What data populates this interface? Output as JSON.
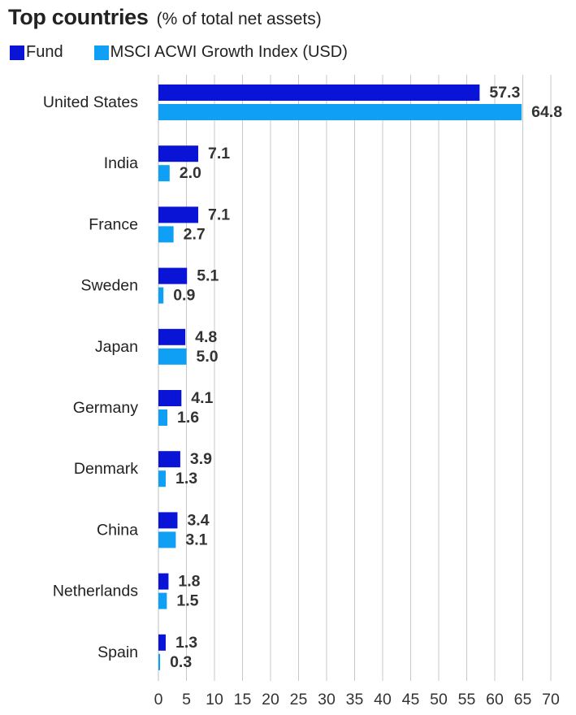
{
  "chart_data": {
    "type": "bar",
    "orientation": "horizontal",
    "title": "Top countries",
    "subtitle": "(% of total net assets)",
    "categories": [
      "United States",
      "India",
      "France",
      "Sweden",
      "Japan",
      "Germany",
      "Denmark",
      "China",
      "Netherlands",
      "Spain"
    ],
    "series": [
      {
        "name": "Fund",
        "color": "#0a14d6",
        "values": [
          57.3,
          7.1,
          7.1,
          5.1,
          4.8,
          4.1,
          3.9,
          3.4,
          1.8,
          1.3
        ]
      },
      {
        "name": "MSCI ACWI Growth Index (USD)",
        "color": "#0fa0f5",
        "values": [
          64.8,
          2.0,
          2.7,
          0.9,
          5.0,
          1.6,
          1.3,
          3.1,
          1.5,
          0.3
        ]
      }
    ],
    "value_labels": [
      [
        "57.3",
        "7.1",
        "7.1",
        "5.1",
        "4.8",
        "4.1",
        "3.9",
        "3.4",
        "1.8",
        "1.3"
      ],
      [
        "64.8",
        "2.0",
        "2.7",
        "0.9",
        "5.0",
        "1.6",
        "1.3",
        "3.1",
        "1.5",
        "0.3"
      ]
    ],
    "xlim": [
      0,
      70
    ],
    "xticks": [
      0,
      5,
      10,
      15,
      20,
      25,
      30,
      35,
      40,
      45,
      50,
      55,
      60,
      65,
      70
    ],
    "grid": "vertical",
    "legend_position": "top-left"
  }
}
